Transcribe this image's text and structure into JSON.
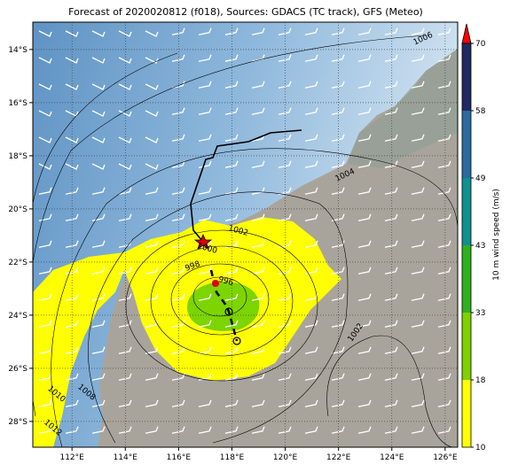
{
  "title": "Forecast of 2020020812 (f018), Sources: GDACS (TC track), GFS (Meteo)",
  "map": {
    "xlim": [
      110.53,
      126.47
    ],
    "ylim": [
      -28.97,
      -12.97
    ],
    "xticks": [
      {
        "value": 112,
        "label": "112°E"
      },
      {
        "value": 114,
        "label": "114°E"
      },
      {
        "value": 116,
        "label": "116°E"
      },
      {
        "value": 118,
        "label": "118°E"
      },
      {
        "value": 120,
        "label": "120°E"
      },
      {
        "value": 122,
        "label": "122°E"
      },
      {
        "value": 124,
        "label": "124°E"
      },
      {
        "value": 126,
        "label": "126°E"
      }
    ],
    "yticks": [
      {
        "value": -14,
        "label": "14°S"
      },
      {
        "value": -16,
        "label": "16°S"
      },
      {
        "value": -18,
        "label": "18°S"
      },
      {
        "value": -20,
        "label": "20°S"
      },
      {
        "value": -22,
        "label": "22°S"
      },
      {
        "value": -24,
        "label": "24°S"
      },
      {
        "value": -26,
        "label": "26°S"
      },
      {
        "value": -28,
        "label": "28°S"
      }
    ],
    "isobar_labels": [
      1006,
      1004,
      1002,
      1000,
      998,
      996,
      1002,
      1010,
      1008,
      1012
    ],
    "grid": true
  },
  "colorbar": {
    "label": "10 m wind speed (m/s)",
    "ticks": [
      10,
      18,
      33,
      43,
      49,
      58,
      70
    ],
    "colors": [
      "#ffff00",
      "#80d000",
      "#30b020",
      "#109090",
      "#2a6aa0",
      "#202a60"
    ],
    "extend_color": "#ff0000"
  }
}
